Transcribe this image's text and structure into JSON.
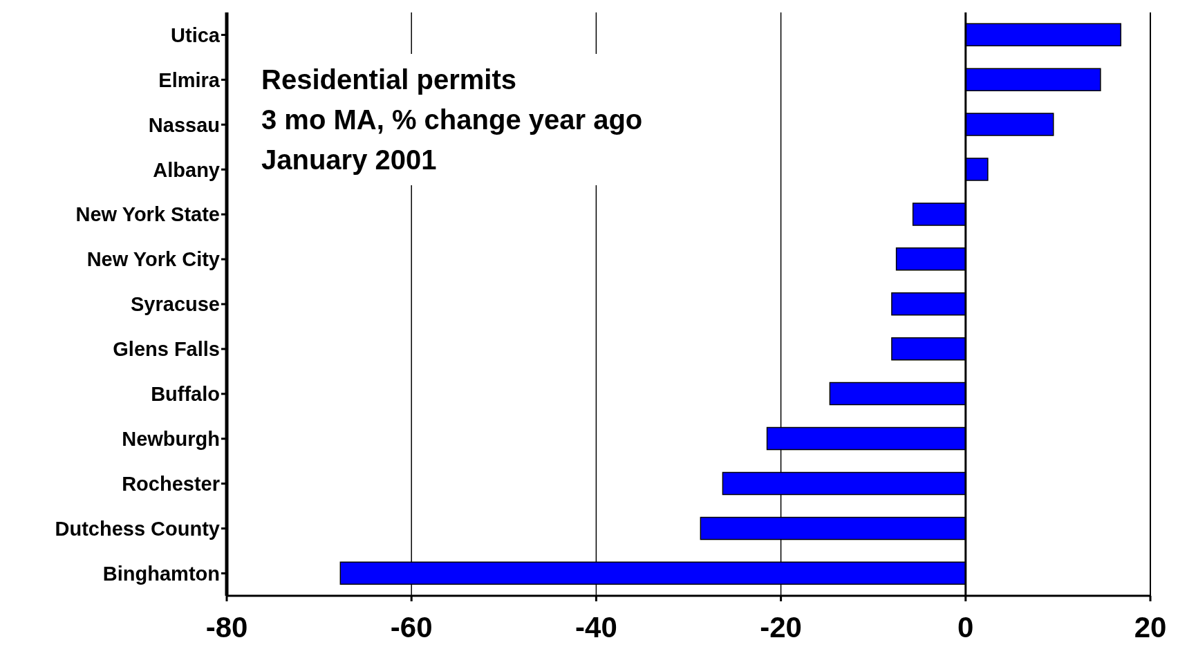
{
  "chart_data": {
    "type": "bar",
    "orientation": "horizontal",
    "title": "Residential permits\n3 mo MA, % change year ago\nJanuary 2001",
    "categories": [
      "Utica",
      "Elmira",
      "Nassau",
      "Albany",
      "New York State",
      "New York City",
      "Syracuse",
      "Glens Falls",
      "Buffalo",
      "Newburgh",
      "Rochester",
      "Dutchess County",
      "Binghamton"
    ],
    "values": [
      16.8,
      14.6,
      9.5,
      2.4,
      -5.7,
      -7.5,
      -8,
      -8,
      -14.7,
      -21.5,
      -26.3,
      -28.7,
      -67.7
    ],
    "color": "#0000ff",
    "xlim": [
      -80,
      20
    ],
    "xticks": [
      -80,
      -60,
      -40,
      -20,
      0,
      20
    ],
    "grid": "x"
  }
}
